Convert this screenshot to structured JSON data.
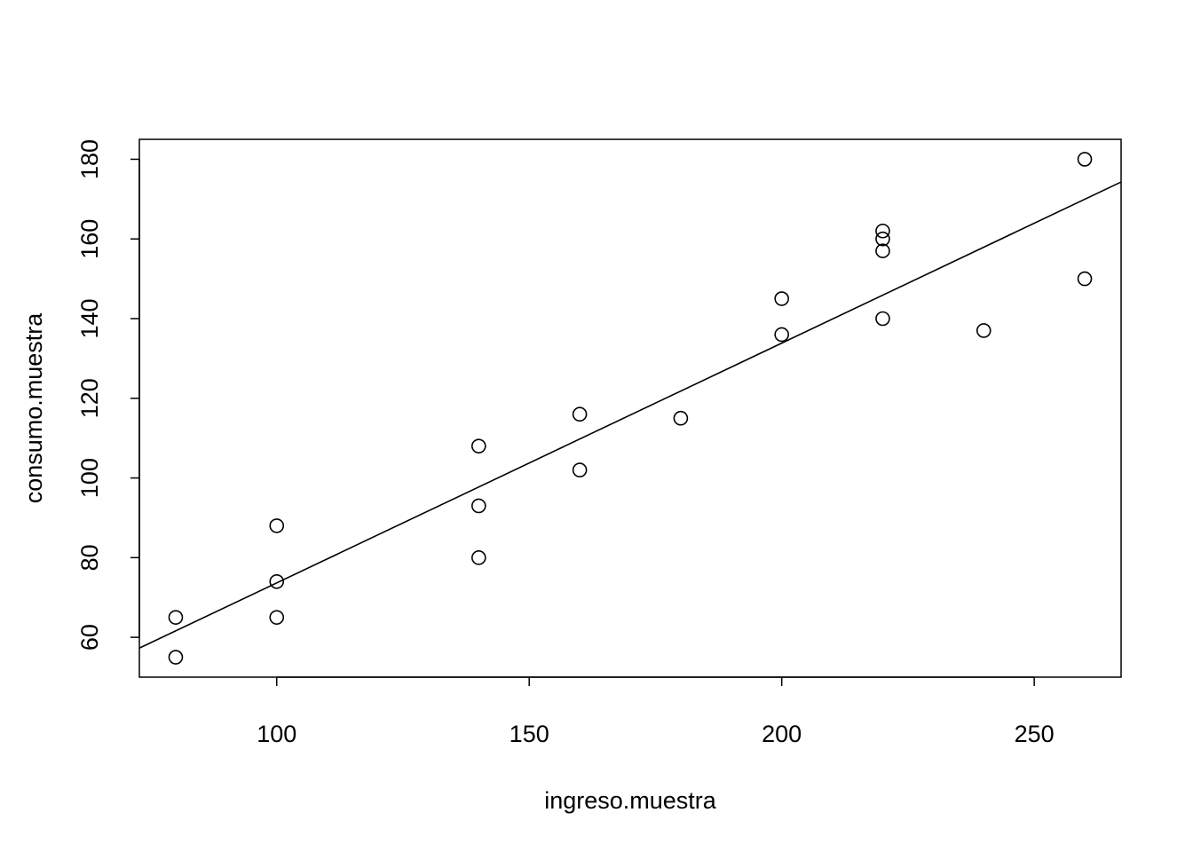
{
  "chart_data": {
    "type": "scatter",
    "title": "",
    "xlabel": "ingreso.muestra",
    "ylabel": "consumo.muestra",
    "xlim": [
      72.8,
      267.2
    ],
    "ylim": [
      50,
      185
    ],
    "grid": false,
    "x_ticks": [
      100,
      150,
      200,
      250
    ],
    "y_ticks": [
      60,
      80,
      100,
      120,
      140,
      160,
      180
    ],
    "x_tick_labels": [
      "100",
      "150",
      "200",
      "250"
    ],
    "y_tick_labels": [
      "60",
      "80",
      "100",
      "120",
      "140",
      "160",
      "180"
    ],
    "points": [
      {
        "x": 80,
        "y": 65
      },
      {
        "x": 80,
        "y": 55
      },
      {
        "x": 100,
        "y": 88
      },
      {
        "x": 100,
        "y": 74
      },
      {
        "x": 100,
        "y": 65
      },
      {
        "x": 140,
        "y": 108
      },
      {
        "x": 140,
        "y": 93
      },
      {
        "x": 140,
        "y": 80
      },
      {
        "x": 160,
        "y": 116
      },
      {
        "x": 160,
        "y": 102
      },
      {
        "x": 180,
        "y": 115
      },
      {
        "x": 200,
        "y": 145
      },
      {
        "x": 200,
        "y": 136
      },
      {
        "x": 220,
        "y": 162
      },
      {
        "x": 220,
        "y": 160
      },
      {
        "x": 220,
        "y": 157
      },
      {
        "x": 220,
        "y": 140
      },
      {
        "x": 240,
        "y": 137
      },
      {
        "x": 260,
        "y": 180
      },
      {
        "x": 260,
        "y": 150
      }
    ],
    "fit_line": {
      "intercept": 13.47,
      "slope": 0.6019
    },
    "colors": {
      "points": "#000000",
      "line": "#000000"
    }
  }
}
